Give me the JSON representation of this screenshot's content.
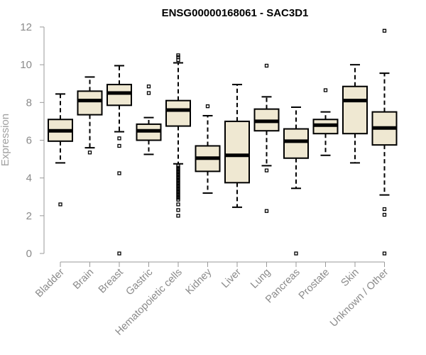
{
  "colors": {
    "box_fill": "#efe8d2",
    "box_stroke": "#000000",
    "axis": "#9a9a9a",
    "text_gray": "#8a8a8a"
  },
  "chart_data": {
    "type": "box",
    "title": "ENSG00000168061 - SAC3D1",
    "xlabel": "",
    "ylabel": "Expression",
    "ylim": [
      0,
      12
    ],
    "yticks": [
      0,
      2,
      4,
      6,
      8,
      10,
      12
    ],
    "categories": [
      "Bladder",
      "Brain",
      "Breast",
      "Gastric",
      "Hematopoietic cells",
      "Kidney",
      "Liver",
      "Lung",
      "Pancreas",
      "Prostate",
      "Skin",
      "Unknown / Other"
    ],
    "boxes": [
      {
        "category": "Bladder",
        "whisker_low": 4.8,
        "q1": 5.95,
        "median": 6.5,
        "q3": 7.1,
        "whisker_high": 8.45,
        "outliers": [
          2.6
        ]
      },
      {
        "category": "Brain",
        "whisker_low": 5.6,
        "q1": 7.35,
        "median": 8.1,
        "q3": 8.6,
        "whisker_high": 9.35,
        "outliers": [
          5.35
        ]
      },
      {
        "category": "Breast",
        "whisker_low": 6.45,
        "q1": 7.85,
        "median": 8.5,
        "q3": 8.95,
        "whisker_high": 9.95,
        "outliers": [
          6.1,
          5.7,
          4.25,
          0.0
        ]
      },
      {
        "category": "Gastric",
        "whisker_low": 5.25,
        "q1": 6.0,
        "median": 6.5,
        "q3": 6.85,
        "whisker_high": 7.2,
        "outliers": [
          8.85,
          8.5
        ]
      },
      {
        "category": "Hematopoietic cells",
        "whisker_low": 4.75,
        "q1": 6.75,
        "median": 7.6,
        "q3": 8.1,
        "whisker_high": 10.1,
        "outliers": [
          10.5,
          10.4,
          10.25,
          4.65,
          4.55,
          4.45,
          4.35,
          4.25,
          4.15,
          4.05,
          3.95,
          3.85,
          3.75,
          3.65,
          3.55,
          3.45,
          3.35,
          3.25,
          3.15,
          3.05,
          2.95,
          2.85,
          2.6,
          2.3,
          2.0
        ]
      },
      {
        "category": "Kidney",
        "whisker_low": 3.2,
        "q1": 4.35,
        "median": 5.05,
        "q3": 5.7,
        "whisker_high": 7.3,
        "outliers": [
          7.8
        ]
      },
      {
        "category": "Liver",
        "whisker_low": 2.45,
        "q1": 3.75,
        "median": 5.2,
        "q3": 7.0,
        "whisker_high": 8.95,
        "outliers": []
      },
      {
        "category": "Lung",
        "whisker_low": 4.65,
        "q1": 6.5,
        "median": 7.0,
        "q3": 7.65,
        "whisker_high": 8.3,
        "outliers": [
          9.95,
          4.4,
          2.25
        ]
      },
      {
        "category": "Pancreas",
        "whisker_low": 3.45,
        "q1": 5.05,
        "median": 5.95,
        "q3": 6.6,
        "whisker_high": 7.75,
        "outliers": [
          0.0
        ]
      },
      {
        "category": "Prostate",
        "whisker_low": 5.2,
        "q1": 6.35,
        "median": 6.8,
        "q3": 7.1,
        "whisker_high": 7.5,
        "outliers": [
          8.65
        ]
      },
      {
        "category": "Skin",
        "whisker_low": 4.8,
        "q1": 6.35,
        "median": 8.1,
        "q3": 8.85,
        "whisker_high": 10.0,
        "outliers": []
      },
      {
        "category": "Unknown / Other",
        "whisker_low": 3.1,
        "q1": 5.75,
        "median": 6.65,
        "q3": 7.5,
        "whisker_high": 9.55,
        "outliers": [
          11.8,
          2.35,
          2.05,
          0.0
        ]
      }
    ],
    "grid": false,
    "legend": "none"
  }
}
